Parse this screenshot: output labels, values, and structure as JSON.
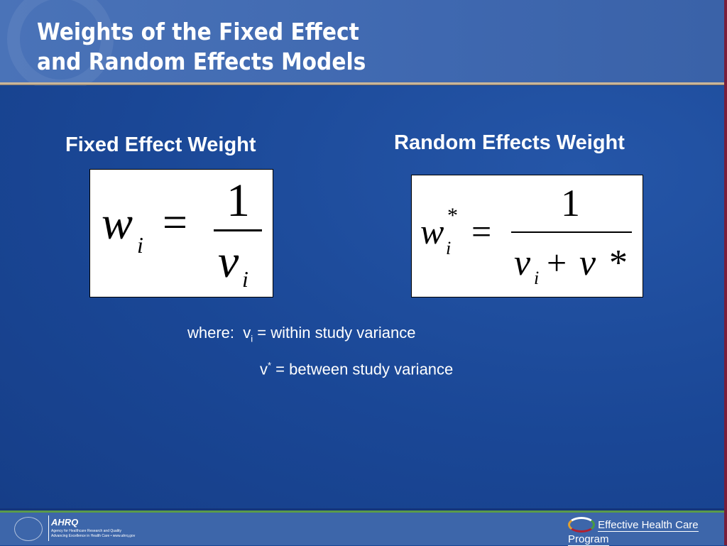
{
  "title_line1": "Weights of the Fixed Effect",
  "title_line2": "and Random Effects Models",
  "fixed": {
    "label": "Fixed Effect Weight",
    "w": "w",
    "sub": "i",
    "eq": "=",
    "num": "1",
    "den": "v",
    "den_sub": "i"
  },
  "random": {
    "label": "Random Effects Weight",
    "w": "w",
    "sub": "i",
    "sup": "*",
    "eq": "=",
    "num": "1",
    "den_v": "v",
    "den_sub": "i",
    "plus": "+",
    "den_v2": "v",
    "den_star": "*"
  },
  "where": {
    "prefix": "where:",
    "line1_v": "v",
    "line1_sub": "i",
    "line1_rest": " = within study variance",
    "line2_v": "v",
    "line2_sup": "*",
    "line2_rest": " = between study variance"
  },
  "footer": {
    "ahrq_logo": "AHRQ",
    "ahrq_name": "Agency for Healthcare Research and Quality",
    "ahrq_tagline": "Advancing Excellence in Health Care • www.ahrq.gov",
    "ehc": "Effective Health Care Program"
  },
  "colors": {
    "background": "#1a4796",
    "header": "#4a73b8",
    "accent_line": "#c9b69a",
    "footer": "#3d66aa"
  }
}
